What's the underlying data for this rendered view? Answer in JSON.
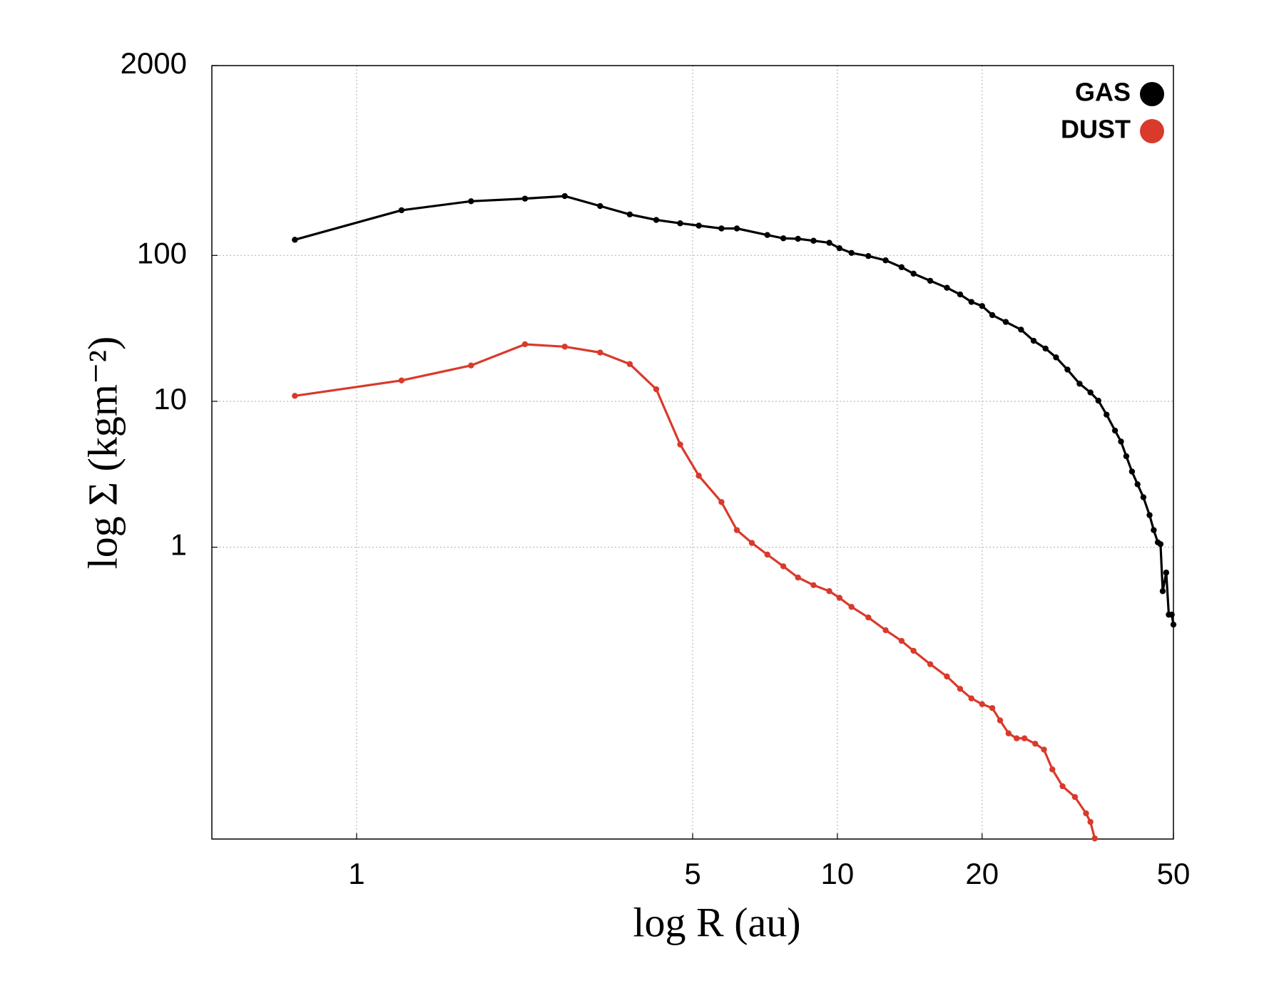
{
  "chart_data": {
    "type": "line",
    "xlabel": "log R (au)",
    "ylabel": "log Σ (kgm⁻²)",
    "xscale": "log",
    "yscale": "log",
    "xlim": [
      0.5,
      50
    ],
    "ylim": [
      0.01,
      2000
    ],
    "xticks": [
      1,
      5,
      10,
      20,
      50
    ],
    "yticks": [
      1,
      10,
      100,
      2000
    ],
    "grid": true,
    "legend": "upper right",
    "series": [
      {
        "name": "GAS",
        "color": "#000000",
        "x": [
          0.744,
          1.24,
          1.73,
          2.24,
          2.71,
          3.21,
          3.7,
          4.2,
          4.71,
          5.15,
          5.74,
          6.18,
          7.15,
          7.72,
          8.28,
          8.92,
          9.62,
          10.1,
          10.7,
          11.6,
          12.6,
          13.6,
          14.4,
          15.6,
          16.9,
          18.0,
          19.0,
          20.0,
          21.0,
          22.4,
          24.1,
          25.6,
          27.1,
          28.5,
          30.1,
          31.9,
          33.6,
          34.9,
          36.3,
          37.8,
          38.9,
          39.9,
          41.0,
          42.1,
          43.3,
          44.6,
          45.5,
          46.4,
          47.0,
          47.5,
          48.3,
          48.9,
          49.6,
          50
        ],
        "values": [
          128,
          204,
          235,
          245,
          255,
          218,
          191,
          175,
          166,
          160,
          153,
          153,
          138,
          131,
          130,
          126,
          122,
          112,
          104,
          99,
          92.5,
          83,
          75,
          67,
          60,
          54,
          48,
          45,
          39,
          35,
          31,
          26,
          23,
          20,
          16.5,
          13.2,
          11.5,
          10.1,
          8.1,
          6.3,
          5.3,
          4.2,
          3.3,
          2.7,
          2.2,
          1.66,
          1.31,
          1.08,
          1.05,
          0.5,
          0.67,
          0.345,
          0.345,
          0.295
        ]
      },
      {
        "name": "DUST",
        "color": "#d93a2b",
        "x": [
          0.744,
          1.24,
          1.73,
          2.24,
          2.71,
          3.21,
          3.7,
          4.2,
          4.71,
          5.15,
          5.74,
          6.18,
          6.64,
          7.15,
          7.72,
          8.28,
          8.92,
          9.62,
          10.1,
          10.7,
          11.6,
          12.6,
          13.6,
          14.4,
          15.6,
          16.9,
          18.0,
          19.0,
          20.0,
          21.0,
          21.8,
          22.7,
          23.6,
          24.5,
          25.8,
          26.9,
          28.0,
          29.4,
          31.2,
          32.9,
          33.6,
          34.3
        ],
        "values": [
          10.9,
          13.9,
          17.6,
          24.6,
          23.7,
          21.6,
          18.0,
          12.1,
          5.06,
          3.09,
          2.04,
          1.31,
          1.07,
          0.89,
          0.74,
          0.62,
          0.55,
          0.5,
          0.45,
          0.39,
          0.33,
          0.27,
          0.228,
          0.195,
          0.158,
          0.13,
          0.107,
          0.092,
          0.084,
          0.079,
          0.065,
          0.053,
          0.049,
          0.049,
          0.045,
          0.041,
          0.03,
          0.023,
          0.0194,
          0.015,
          0.0131,
          0.0101
        ]
      }
    ]
  }
}
